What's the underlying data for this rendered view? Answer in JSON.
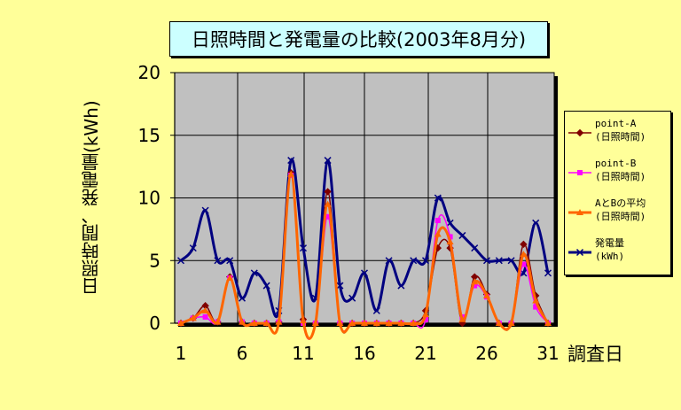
{
  "chart_data": {
    "type": "line",
    "title": "日照時間と発電量の比較(2003年8月分)",
    "xlabel": "調査日",
    "ylabel": "日照時間、発電量(kWh)",
    "x": [
      1,
      2,
      3,
      4,
      5,
      6,
      7,
      8,
      9,
      10,
      11,
      12,
      13,
      14,
      15,
      16,
      17,
      18,
      19,
      20,
      21,
      22,
      23,
      24,
      25,
      26,
      27,
      28,
      29,
      30,
      31
    ],
    "x_tick_labels": [
      "1",
      "6",
      "11",
      "16",
      "21",
      "26",
      "31"
    ],
    "y_tick_labels": [
      "0",
      "5",
      "10",
      "15",
      "20"
    ],
    "ylim": [
      0,
      20
    ],
    "grid": true,
    "legend_position": "right",
    "series": [
      {
        "name": "point-A (日照時間)",
        "line1": "point-A",
        "line2": "(日照時間)",
        "color": "#800000",
        "marker": "diamond",
        "values": [
          0,
          0.4,
          1.4,
          0.1,
          3.7,
          0.1,
          0,
          0,
          0.1,
          12,
          0.3,
          0,
          10.5,
          0,
          0,
          0,
          0,
          0,
          0,
          0,
          1,
          6,
          6,
          0,
          3.7,
          2.3,
          0,
          0,
          6.3,
          2.2,
          0
        ]
      },
      {
        "name": "point-B (日照時間)",
        "line1": "point-B",
        "line2": "(日照時間)",
        "color": "#ff00ff",
        "marker": "square",
        "values": [
          0,
          0.4,
          0.5,
          0.1,
          3.6,
          0.1,
          0,
          0,
          0.1,
          11.8,
          0,
          0,
          8.5,
          0,
          0,
          0,
          0,
          0,
          0,
          0,
          0.3,
          8.2,
          6.9,
          0.5,
          3,
          2.1,
          0,
          0,
          4.7,
          1.3,
          0
        ]
      },
      {
        "name": "AとBの平均 (日照時間)",
        "line1": "AとBの平均",
        "line2": "(日照時間)",
        "color": "#ff6600",
        "marker": "triangle",
        "values": [
          0,
          0.4,
          1,
          0.1,
          3.6,
          0.1,
          0,
          0,
          0.1,
          11.9,
          0.2,
          0,
          9.5,
          0,
          0,
          0,
          0,
          0,
          0,
          0,
          0.7,
          7.1,
          6.5,
          0.3,
          3.3,
          2.2,
          0,
          0,
          5.5,
          1.8,
          0
        ]
      },
      {
        "name": "発電量 (kWh)",
        "line1": "発電量",
        "line2": "(kWh)",
        "color": "#000080",
        "marker": "x",
        "values": [
          5,
          6,
          9,
          5,
          5,
          2,
          4,
          3,
          1,
          13,
          6,
          2,
          13,
          3,
          2,
          4,
          1,
          5,
          3,
          5,
          5,
          10,
          8,
          7,
          6,
          5,
          5,
          5,
          4,
          8,
          4
        ]
      }
    ]
  },
  "axes": {
    "y_ticks": [
      0,
      5,
      10,
      15,
      20
    ],
    "x_ticks": [
      1,
      6,
      11,
      16,
      21,
      26,
      31
    ]
  },
  "colors": {
    "background": "#ffff99",
    "plot_area": "#c0c0c0",
    "title_box": "#ccffff"
  }
}
